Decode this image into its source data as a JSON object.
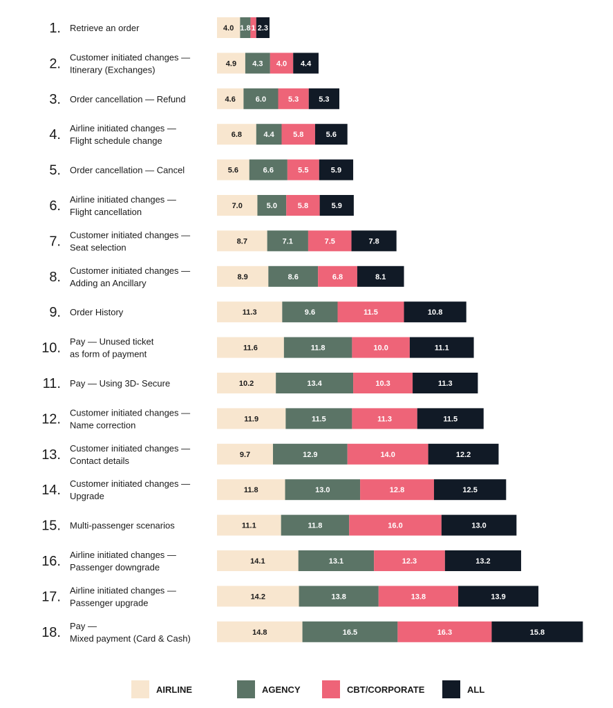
{
  "colors": {
    "airline": "#f8e6cf",
    "agency": "#5b7466",
    "cbt": "#ee6478",
    "all": "#111a26",
    "dark_text": "#1a1a1a",
    "light_text": "#ffffff"
  },
  "chart_data": {
    "type": "bar",
    "orientation": "horizontal",
    "stacked": true,
    "grid": false,
    "legend_position": "bottom",
    "categories": [
      {
        "num": "1.",
        "lines": [
          "Retrieve an order"
        ]
      },
      {
        "num": "2.",
        "lines": [
          "Customer initiated changes —",
          "Itinerary (Exchanges)"
        ]
      },
      {
        "num": "3.",
        "lines": [
          "Order cancellation — Refund"
        ]
      },
      {
        "num": "4.",
        "lines": [
          "Airline initiated changes —",
          "Flight schedule change"
        ]
      },
      {
        "num": "5.",
        "lines": [
          "Order cancellation — Cancel"
        ]
      },
      {
        "num": "6.",
        "lines": [
          "Airline initiated changes —",
          "Flight cancellation"
        ]
      },
      {
        "num": "7.",
        "lines": [
          "Customer initiated changes —",
          "Seat selection"
        ]
      },
      {
        "num": "8.",
        "lines": [
          "Customer initiated changes —",
          "Adding an Ancillary"
        ]
      },
      {
        "num": "9.",
        "lines": [
          "Order History"
        ]
      },
      {
        "num": "10.",
        "lines": [
          "Pay — Unused ticket",
          "as form of payment"
        ]
      },
      {
        "num": "11.",
        "lines": [
          "Pay — Using 3D- Secure"
        ]
      },
      {
        "num": "12.",
        "lines": [
          "Customer initiated changes —",
          "Name correction"
        ]
      },
      {
        "num": "13.",
        "lines": [
          "Customer initiated changes  —",
          "Contact details"
        ]
      },
      {
        "num": "14.",
        "lines": [
          "Customer initiated changes —",
          "Upgrade"
        ]
      },
      {
        "num": "15.",
        "lines": [
          "Multi-passenger scenarios"
        ]
      },
      {
        "num": "16.",
        "lines": [
          "Airline initiated changes —",
          "Passenger downgrade"
        ]
      },
      {
        "num": "17.",
        "lines": [
          "Airline initiated changes —",
          "Passenger upgrade"
        ]
      },
      {
        "num": "18.",
        "lines": [
          "Pay —",
          "Mixed payment (Card & Cash)"
        ]
      }
    ],
    "series": [
      {
        "name": "AIRLINE",
        "key": "airline",
        "values": [
          4.0,
          4.9,
          4.6,
          6.8,
          5.6,
          7.0,
          8.7,
          8.9,
          11.3,
          11.6,
          10.2,
          11.9,
          9.7,
          11.8,
          11.1,
          14.1,
          14.2,
          14.8
        ]
      },
      {
        "name": "AGENCY",
        "key": "agency",
        "values": [
          1.8,
          4.3,
          6.0,
          4.4,
          6.6,
          5.0,
          7.1,
          8.6,
          9.6,
          11.8,
          13.4,
          11.5,
          12.9,
          13.0,
          11.8,
          13.1,
          13.8,
          16.5
        ]
      },
      {
        "name": "CBT/CORPORATE",
        "key": "cbt",
        "values": [
          1.0,
          4.0,
          5.3,
          5.8,
          5.5,
          5.8,
          7.5,
          6.8,
          11.5,
          10.0,
          10.3,
          11.3,
          14.0,
          12.8,
          16.0,
          12.3,
          13.8,
          16.3
        ]
      },
      {
        "name": "ALL",
        "key": "all",
        "values": [
          2.3,
          4.4,
          5.3,
          5.6,
          5.9,
          5.9,
          7.8,
          8.1,
          10.8,
          11.1,
          11.3,
          11.5,
          12.2,
          12.5,
          13.0,
          13.2,
          13.9,
          15.8
        ]
      }
    ],
    "value_labels": {
      "airline": [
        "4.0",
        "4.9",
        "4.6",
        "6.8",
        "5.6",
        "7.0",
        "8.7",
        "8.9",
        "11.3",
        "11.6",
        "10.2",
        "11.9",
        "9.7",
        "11.8",
        "11.1",
        "14.1",
        "14.2",
        "14.8"
      ],
      "agency": [
        "1.8",
        "4.3",
        "6.0",
        "4.4",
        "6.6",
        "5.0",
        "7.1",
        "8.6",
        "9.6",
        "11.8",
        "13.4",
        "11.5",
        "12.9",
        "13.0",
        "11.8",
        "13.1",
        "13.8",
        "16.5"
      ],
      "cbt": [
        "1",
        "4.0",
        "5.3",
        "5.8",
        "5.5",
        "5.8",
        "7.5",
        "6.8",
        "11.5",
        "10.0",
        "10.3",
        "11.3",
        "14.0",
        "12.8",
        "16.0",
        "12.3",
        "13.8",
        "16.3"
      ],
      "all": [
        "2.3",
        "4.4",
        "5.3",
        "5.6",
        "5.9",
        "5.9",
        "7.8",
        "8.1",
        "10.8",
        "11.1",
        "11.3",
        "11.5",
        "12.2",
        "12.5",
        "13.0",
        "13.2",
        "13.9",
        "15.8"
      ]
    }
  }
}
